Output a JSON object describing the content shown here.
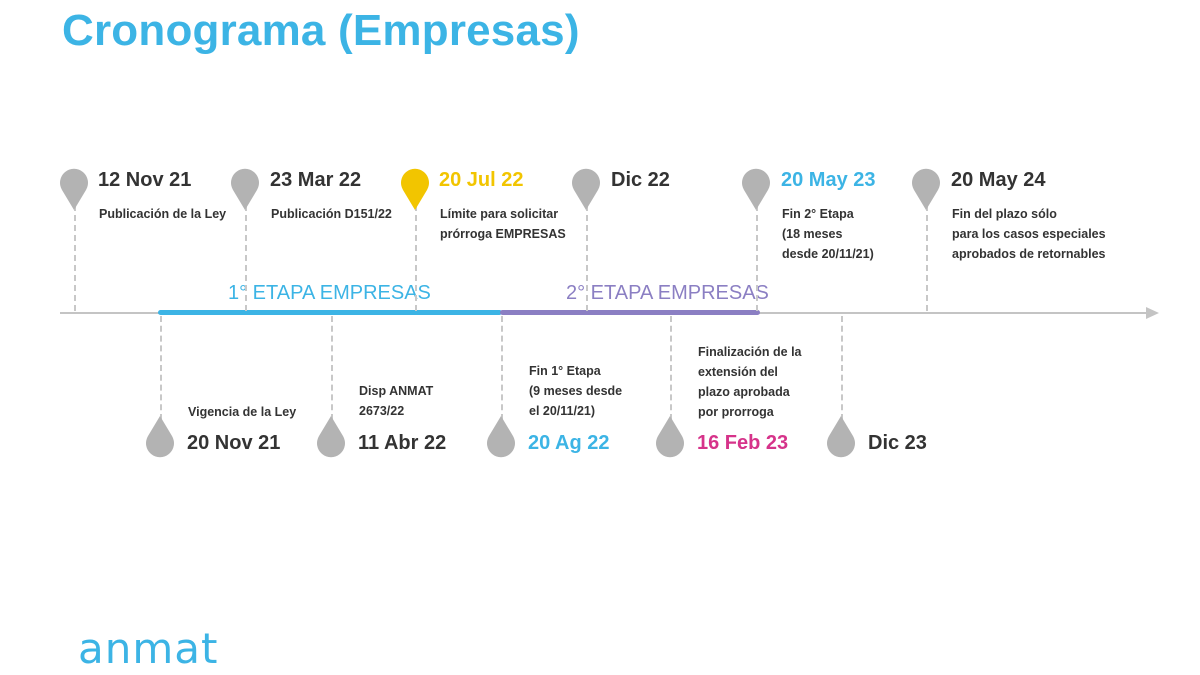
{
  "title": "Cronograma (Empresas)",
  "logo_text": "anmat",
  "colors": {
    "title": "#3cb4e5",
    "stage1": "#3cb4e5",
    "stage2": "#8b7fc3",
    "highlight_yellow": "#f2c500",
    "highlight_blue": "#3cb4e5",
    "highlight_pink": "#d6338a",
    "neutral_pin": "#b3b3b3",
    "text": "#333333",
    "axis": "#c4c4c4"
  },
  "phases": {
    "stage1": "1° ETAPA EMPRESAS",
    "stage2": "2° ETAPA EMPRESAS"
  },
  "milestones_above": [
    {
      "date": "12 Nov 21",
      "desc": "Publicación de la Ley",
      "color": "neutral"
    },
    {
      "date": "23 Mar 22",
      "desc": "Publicación D151/22",
      "color": "neutral"
    },
    {
      "date": "20 Jul 22",
      "desc": "Límite para solicitar\nprórroga EMPRESAS",
      "color": "yellow"
    },
    {
      "date": "Dic 22",
      "desc": "",
      "color": "neutral"
    },
    {
      "date": "20 May 23",
      "desc": "Fin 2° Etapa\n(18 meses\ndesde 20/11/21)",
      "color": "blue"
    },
    {
      "date": "20 May 24",
      "desc": "Fin del plazo sólo\npara los casos especiales\naprobados de retornables",
      "color": "neutral"
    }
  ],
  "milestones_below": [
    {
      "date": "20 Nov 21",
      "desc": "Vigencia de la Ley",
      "color": "neutral"
    },
    {
      "date": "11 Abr 22",
      "desc": "Disp ANMAT\n2673/22",
      "color": "neutral"
    },
    {
      "date": "20 Ag 22",
      "desc": "Fin 1° Etapa\n(9 meses desde\nel 20/11/21)",
      "color": "blue"
    },
    {
      "date": "16 Feb 23",
      "desc": "Finalización de la\nextensión del\nplazo aprobada\npor prorroga",
      "color": "pink"
    },
    {
      "date": "Dic 23",
      "desc": "",
      "color": "neutral"
    }
  ]
}
